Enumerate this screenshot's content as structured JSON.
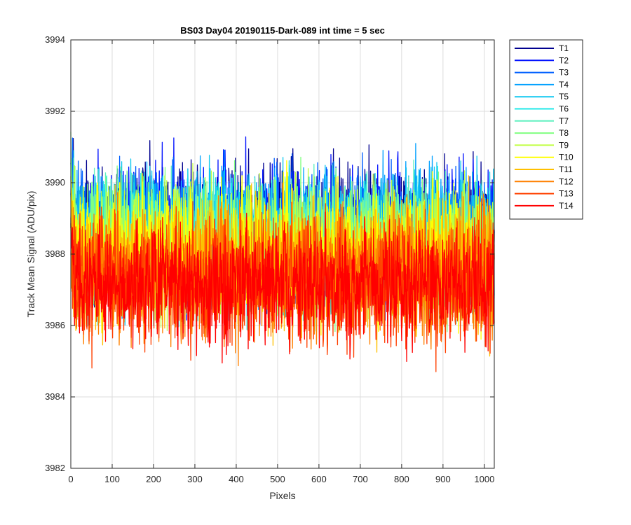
{
  "chart_data": {
    "type": "line",
    "title": "BS03 Day04 20190115-Dark-089 int time = 5 sec",
    "xlabel": "Pixels",
    "ylabel": "Track Mean Signal (ADU/pix)",
    "xlim": [
      0,
      1024
    ],
    "ylim": [
      3982,
      3994
    ],
    "xticks": [
      0,
      100,
      200,
      300,
      400,
      500,
      600,
      700,
      800,
      900,
      1000
    ],
    "yticks": [
      3982,
      3984,
      3986,
      3988,
      3990,
      3992,
      3994
    ],
    "grid": true,
    "legend_position": "outside-top-right",
    "series": [
      {
        "name": "T1",
        "color": "#00008f",
        "mean": 3988.7,
        "amp": 1.7
      },
      {
        "name": "T2",
        "color": "#0010ff",
        "mean": 3988.6,
        "amp": 1.7
      },
      {
        "name": "T3",
        "color": "#0060ff",
        "mean": 3988.5,
        "amp": 1.6
      },
      {
        "name": "T4",
        "color": "#00a0ff",
        "mean": 3988.5,
        "amp": 1.6
      },
      {
        "name": "T5",
        "color": "#10c8f0",
        "mean": 3988.4,
        "amp": 1.6
      },
      {
        "name": "T6",
        "color": "#20e8e8",
        "mean": 3988.3,
        "amp": 1.6
      },
      {
        "name": "T7",
        "color": "#60f0c0",
        "mean": 3988.3,
        "amp": 1.6
      },
      {
        "name": "T8",
        "color": "#80ff80",
        "mean": 3988.2,
        "amp": 1.6
      },
      {
        "name": "T9",
        "color": "#c0ff40",
        "mean": 3988.1,
        "amp": 1.6
      },
      {
        "name": "T10",
        "color": "#ffff00",
        "mean": 3988.0,
        "amp": 1.6
      },
      {
        "name": "T11",
        "color": "#ffc000",
        "mean": 3987.7,
        "amp": 1.6
      },
      {
        "name": "T12",
        "color": "#ff8000",
        "mean": 3987.4,
        "amp": 1.6
      },
      {
        "name": "T13",
        "color": "#ff4000",
        "mean": 3987.2,
        "amp": 1.6
      },
      {
        "name": "T14",
        "color": "#ff0000",
        "mean": 3987.2,
        "amp": 1.4
      }
    ]
  }
}
